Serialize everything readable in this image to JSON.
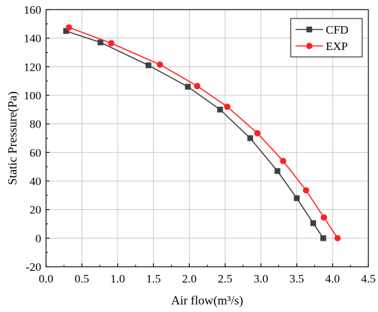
{
  "chart_data": {
    "type": "line",
    "xlabel": "Air flow(m³/s)",
    "ylabel": "Static Pressure(Pa)",
    "xlim": [
      0.0,
      4.5
    ],
    "ylim": [
      -20,
      160
    ],
    "x_ticks": [
      "0.0",
      "0.5",
      "1.0",
      "1.5",
      "2.0",
      "2.5",
      "3.0",
      "3.5",
      "4.0",
      "4.5"
    ],
    "y_ticks": [
      "-20",
      "0",
      "20",
      "40",
      "60",
      "80",
      "100",
      "120",
      "140",
      "160"
    ],
    "grid": true,
    "legend_position": "top-right",
    "series": [
      {
        "name": "CFD",
        "color": "#404040",
        "marker": "square",
        "points": [
          [
            0.28,
            145
          ],
          [
            0.76,
            137
          ],
          [
            1.43,
            121
          ],
          [
            1.98,
            106
          ],
          [
            2.43,
            90
          ],
          [
            2.85,
            70
          ],
          [
            3.23,
            47
          ],
          [
            3.5,
            28
          ],
          [
            3.73,
            10.5
          ],
          [
            3.87,
            0
          ]
        ]
      },
      {
        "name": "EXP",
        "color": "#ff2020",
        "marker": "circle",
        "points": [
          [
            0.32,
            147.5
          ],
          [
            0.91,
            136.5
          ],
          [
            1.59,
            121.5
          ],
          [
            2.11,
            106.5
          ],
          [
            2.53,
            92
          ],
          [
            2.95,
            73.5
          ],
          [
            3.31,
            54
          ],
          [
            3.63,
            33.5
          ],
          [
            3.88,
            14.5
          ],
          [
            4.07,
            0
          ]
        ]
      }
    ]
  }
}
